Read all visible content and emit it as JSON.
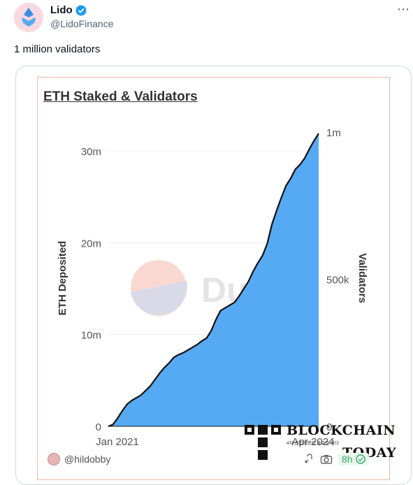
{
  "tweet": {
    "author_name": "Lido",
    "author_handle": "@LidoFinance",
    "text": "1 million validators",
    "more_icon": "more-horizontal-icon",
    "verified_color": "#1d9bf0"
  },
  "card": {
    "chart_credit": "@hildobby",
    "age": "8h",
    "accent_color": "#56a9f3"
  },
  "watermarks": {
    "dune": "Dune",
    "brand_line1": "BLOCKCHAIN",
    "brand_line2": "TODAY",
    "brand_sub": "4차 산업혁명의 글로벌 리더"
  },
  "chart_data": {
    "type": "area",
    "title": "ETH Staked & Validators",
    "xlabel": "",
    "ylabel": "ETH Deposited",
    "y2label": "Validators",
    "x_ticks": [
      "Jan 2021",
      "Apr 2024"
    ],
    "y_ticks": [
      "0",
      "10m",
      "20m",
      "30m"
    ],
    "y2_ticks": [
      "0",
      "500k",
      "1m"
    ],
    "ylim": [
      0,
      30000000
    ],
    "y2lim": [
      0,
      1000000
    ],
    "grid": true,
    "series": [
      {
        "values": [
          0,
          0.2,
          0.9,
          1.7,
          2.4,
          2.8,
          3.1,
          3.4,
          3.9,
          4.4,
          5.1,
          5.8,
          6.4,
          6.9,
          7.5,
          7.8,
          8.0,
          8.3,
          8.6,
          8.9,
          9.3,
          9.6,
          10.4,
          11.6,
          12.6,
          12.9,
          13.2,
          13.5,
          14.2,
          15.0,
          15.8,
          16.9,
          17.8,
          18.6,
          19.9,
          22.0,
          23.5,
          24.9,
          26.2,
          27.0,
          28.0,
          28.5,
          29.2,
          30.2,
          31.1,
          31.9
        ],
        "color": "#56a9f3"
      }
    ]
  }
}
